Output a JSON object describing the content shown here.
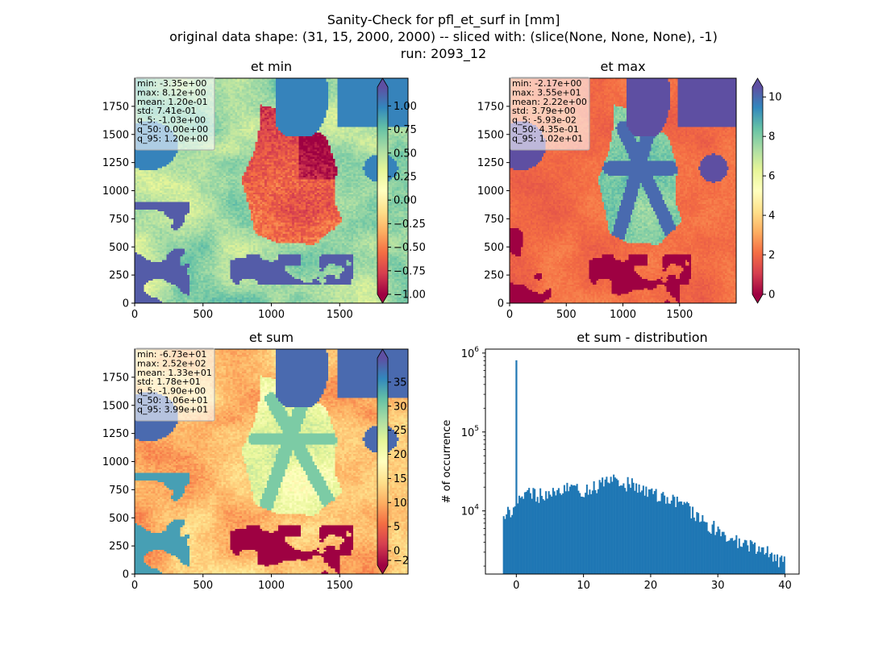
{
  "figure": {
    "title_lines": [
      "Sanity-Check for pfl_et_surf in [mm]",
      "original data shape: (31, 15, 2000, 2000) -- sliced with: (slice(None, None, None), -1)",
      "run: 2093_12"
    ]
  },
  "chart_data": [
    {
      "type": "heatmap",
      "title": "et min",
      "xlim": [
        0,
        2000
      ],
      "ylim": [
        0,
        2000
      ],
      "x_ticks": [
        "0",
        "500",
        "1000",
        "1500"
      ],
      "y_ticks": [
        "0",
        "250",
        "500",
        "750",
        "1000",
        "1250",
        "1500",
        "1750"
      ],
      "colormap": "Spectral",
      "colorbar": {
        "range": [
          -1.0,
          1.2
        ],
        "ticks": [
          "−1.00",
          "−0.75",
          "−0.50",
          "−0.25",
          "0.00",
          "0.25",
          "0.50",
          "0.75",
          "1.00"
        ],
        "extend": "both"
      },
      "stats": [
        "min: -3.35e+00",
        "max: 8.12e+00",
        "mean: 1.20e-01",
        "std: 7.41e-01",
        "q_5: -1.03e+00",
        "q_50: 0.00e+00",
        "q_95: 1.20e+00"
      ]
    },
    {
      "type": "heatmap",
      "title": "et max",
      "xlim": [
        0,
        2000
      ],
      "ylim": [
        0,
        2000
      ],
      "x_ticks": [
        "0",
        "500",
        "1000",
        "1500"
      ],
      "y_ticks": [
        "0",
        "250",
        "500",
        "750",
        "1000",
        "1250",
        "1500",
        "1750"
      ],
      "colormap": "Spectral",
      "colorbar": {
        "range": [
          0,
          10.5
        ],
        "ticks": [
          "0",
          "2",
          "4",
          "6",
          "8",
          "10"
        ],
        "extend": "both"
      },
      "stats": [
        "min: -2.17e+00",
        "max: 3.55e+01",
        "mean: 2.22e+00",
        "std: 3.79e+00",
        "q_5: -5.93e-02",
        "q_50: 4.35e-01",
        "q_95: 1.02e+01"
      ]
    },
    {
      "type": "heatmap",
      "title": "et sum",
      "xlim": [
        0,
        2000
      ],
      "ylim": [
        0,
        2000
      ],
      "x_ticks": [
        "0",
        "500",
        "1000",
        "1500"
      ],
      "y_ticks": [
        "0",
        "250",
        "500",
        "750",
        "1000",
        "1250",
        "1500",
        "1750"
      ],
      "colormap": "Spectral",
      "colorbar": {
        "range": [
          -3,
          40
        ],
        "ticks": [
          "−2",
          "0",
          "5",
          "10",
          "15",
          "20",
          "25",
          "30",
          "35"
        ],
        "extend": "both"
      },
      "stats": [
        "min: -6.73e+01",
        "max: 2.52e+02",
        "mean: 1.33e+01",
        "std: 1.78e+01",
        "q_5: -1.90e+00",
        "q_50: 1.06e+01",
        "q_95: 3.99e+01"
      ]
    },
    {
      "type": "bar",
      "title": "et sum - distribution",
      "ylabel": "# of occurrence",
      "xlim": [
        -4.6,
        42.1
      ],
      "ylim_log10": [
        3.2,
        6.05
      ],
      "yscale": "log",
      "x_ticks": [
        0,
        10,
        20,
        30,
        40
      ],
      "y_ticks": [
        {
          "value": 10000,
          "base": "10",
          "exp": "4"
        },
        {
          "value": 100000,
          "base": "10",
          "exp": "5"
        },
        {
          "value": 1000000,
          "base": "10",
          "exp": "6"
        }
      ],
      "bar_color": "#1f77b4",
      "spike": {
        "x": 0.0,
        "count": 810000
      },
      "hist_range": [
        -2.0,
        40.0
      ],
      "profile": [
        {
          "x": -2.0,
          "count": 8500
        },
        {
          "x": 0.0,
          "count": 12000
        },
        {
          "x": 2.0,
          "count": 16500
        },
        {
          "x": 5.0,
          "count": 15500
        },
        {
          "x": 8.0,
          "count": 19500
        },
        {
          "x": 10.0,
          "count": 18000
        },
        {
          "x": 13.0,
          "count": 23000
        },
        {
          "x": 15.0,
          "count": 24000
        },
        {
          "x": 18.0,
          "count": 21000
        },
        {
          "x": 20.0,
          "count": 18000
        },
        {
          "x": 22.0,
          "count": 15000
        },
        {
          "x": 25.0,
          "count": 11500
        },
        {
          "x": 27.0,
          "count": 9000
        },
        {
          "x": 29.0,
          "count": 6500
        },
        {
          "x": 31.0,
          "count": 5000
        },
        {
          "x": 33.0,
          "count": 4200
        },
        {
          "x": 36.0,
          "count": 3300
        },
        {
          "x": 38.0,
          "count": 2800
        },
        {
          "x": 40.0,
          "count": 2200
        }
      ]
    }
  ]
}
